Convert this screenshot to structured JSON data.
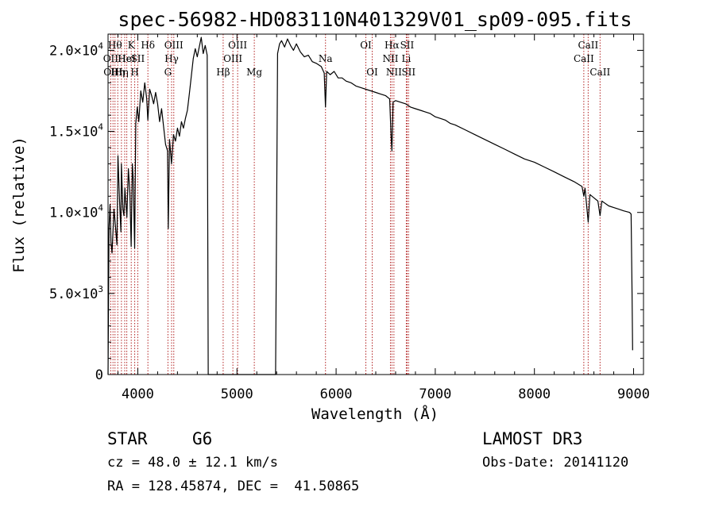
{
  "chart_data": {
    "type": "line",
    "title": "spec-56982-HD083110N401329V01_sp09-095.fits",
    "xlabel": "Wavelength (Å)",
    "ylabel": "Flux (relative)",
    "xlim": [
      3700,
      9100
    ],
    "ylim": [
      0,
      21000
    ],
    "x_ticks": [
      4000,
      5000,
      6000,
      7000,
      8000,
      9000
    ],
    "x_tick_labels": [
      "4000",
      "5000",
      "6000",
      "7000",
      "8000",
      "9000"
    ],
    "y_ticks": [
      0,
      5000,
      10000,
      15000,
      20000
    ],
    "y_tick_labels": [
      {
        "mant": "0",
        "exp": ""
      },
      {
        "mant": "5.0×10",
        "exp": "3"
      },
      {
        "mant": "1.0×10",
        "exp": "4"
      },
      {
        "mant": "1.5×10",
        "exp": "4"
      },
      {
        "mant": "2.0×10",
        "exp": "4"
      }
    ],
    "spectrum": [
      [
        3700,
        0
      ],
      [
        3710,
        9000
      ],
      [
        3720,
        10500
      ],
      [
        3730,
        8200
      ],
      [
        3740,
        7500
      ],
      [
        3760,
        10200
      ],
      [
        3770,
        9500
      ],
      [
        3790,
        8000
      ],
      [
        3800,
        13500
      ],
      [
        3815,
        10800
      ],
      [
        3830,
        8800
      ],
      [
        3835,
        13000
      ],
      [
        3850,
        10200
      ],
      [
        3860,
        9800
      ],
      [
        3870,
        11500
      ],
      [
        3890,
        9700
      ],
      [
        3905,
        12700
      ],
      [
        3920,
        11200
      ],
      [
        3933,
        7900
      ],
      [
        3945,
        13000
      ],
      [
        3955,
        12000
      ],
      [
        3968,
        7800
      ],
      [
        3980,
        15500
      ],
      [
        3995,
        16500
      ],
      [
        4010,
        15600
      ],
      [
        4030,
        17500
      ],
      [
        4050,
        16800
      ],
      [
        4070,
        18000
      ],
      [
        4090,
        17000
      ],
      [
        4101,
        15700
      ],
      [
        4120,
        17600
      ],
      [
        4140,
        17200
      ],
      [
        4160,
        16700
      ],
      [
        4180,
        17400
      ],
      [
        4200,
        16700
      ],
      [
        4220,
        15600
      ],
      [
        4240,
        16400
      ],
      [
        4260,
        15300
      ],
      [
        4280,
        14200
      ],
      [
        4300,
        13800
      ],
      [
        4307,
        9000
      ],
      [
        4320,
        14500
      ],
      [
        4340,
        13000
      ],
      [
        4360,
        14800
      ],
      [
        4380,
        14400
      ],
      [
        4400,
        15200
      ],
      [
        4420,
        14700
      ],
      [
        4440,
        15600
      ],
      [
        4460,
        15200
      ],
      [
        4480,
        15800
      ],
      [
        4500,
        16300
      ],
      [
        4520,
        17300
      ],
      [
        4540,
        18400
      ],
      [
        4560,
        19500
      ],
      [
        4580,
        20100
      ],
      [
        4600,
        19600
      ],
      [
        4620,
        20200
      ],
      [
        4640,
        20800
      ],
      [
        4660,
        19800
      ],
      [
        4680,
        20300
      ],
      [
        4700,
        19700
      ],
      [
        4710,
        0
      ],
      [
        5390,
        0
      ],
      [
        5400,
        10000
      ],
      [
        5410,
        19800
      ],
      [
        5430,
        20400
      ],
      [
        5450,
        20600
      ],
      [
        5480,
        20200
      ],
      [
        5510,
        20700
      ],
      [
        5540,
        20300
      ],
      [
        5570,
        20000
      ],
      [
        5600,
        20400
      ],
      [
        5640,
        19900
      ],
      [
        5680,
        19600
      ],
      [
        5720,
        19700
      ],
      [
        5760,
        19300
      ],
      [
        5800,
        19200
      ],
      [
        5850,
        19000
      ],
      [
        5880,
        18600
      ],
      [
        5893,
        16500
      ],
      [
        5905,
        18700
      ],
      [
        5940,
        18500
      ],
      [
        5980,
        18700
      ],
      [
        6020,
        18300
      ],
      [
        6060,
        18300
      ],
      [
        6100,
        18100
      ],
      [
        6150,
        18000
      ],
      [
        6200,
        17800
      ],
      [
        6250,
        17700
      ],
      [
        6300,
        17600
      ],
      [
        6350,
        17500
      ],
      [
        6400,
        17400
      ],
      [
        6450,
        17300
      ],
      [
        6500,
        17200
      ],
      [
        6540,
        17000
      ],
      [
        6555,
        14700
      ],
      [
        6563,
        13800
      ],
      [
        6575,
        16800
      ],
      [
        6600,
        16900
      ],
      [
        6650,
        16800
      ],
      [
        6700,
        16700
      ],
      [
        6750,
        16500
      ],
      [
        6800,
        16400
      ],
      [
        6850,
        16300
      ],
      [
        6900,
        16200
      ],
      [
        6950,
        16100
      ],
      [
        7000,
        15900
      ],
      [
        7050,
        15800
      ],
      [
        7100,
        15700
      ],
      [
        7150,
        15500
      ],
      [
        7200,
        15400
      ],
      [
        7300,
        15100
      ],
      [
        7400,
        14800
      ],
      [
        7500,
        14500
      ],
      [
        7600,
        14200
      ],
      [
        7700,
        13900
      ],
      [
        7800,
        13600
      ],
      [
        7900,
        13300
      ],
      [
        8000,
        13100
      ],
      [
        8100,
        12800
      ],
      [
        8200,
        12500
      ],
      [
        8300,
        12200
      ],
      [
        8400,
        11900
      ],
      [
        8480,
        11600
      ],
      [
        8498,
        11000
      ],
      [
        8510,
        11500
      ],
      [
        8542,
        9400
      ],
      [
        8560,
        11100
      ],
      [
        8600,
        10900
      ],
      [
        8640,
        10700
      ],
      [
        8662,
        9800
      ],
      [
        8680,
        10700
      ],
      [
        8750,
        10400
      ],
      [
        8800,
        10300
      ],
      [
        8850,
        10200
      ],
      [
        8900,
        10100
      ],
      [
        8960,
        10000
      ],
      [
        8975,
        9900
      ],
      [
        8985,
        5000
      ],
      [
        8990,
        1500
      ]
    ],
    "lines": [
      {
        "x": 3727,
        "label": "OII",
        "row": 2
      },
      {
        "x": 3750,
        "label": "OIII",
        "row": 3
      },
      {
        "x": 3770,
        "label": "Hθ",
        "row": 1
      },
      {
        "x": 3798,
        "label": "Hη",
        "row": 3
      },
      {
        "x": 3835,
        "label": "Hη",
        "row": 3
      },
      {
        "x": 3868,
        "label": "He",
        "row": 2
      },
      {
        "x": 3889,
        "label": "HeI",
        "row": 2
      },
      {
        "x": 3934,
        "label": "K",
        "row": 1
      },
      {
        "x": 3969,
        "label": "H",
        "row": 3
      },
      {
        "x": 4000,
        "label": "SII",
        "row": 2
      },
      {
        "x": 4102,
        "label": "Hδ",
        "row": 1
      },
      {
        "x": 4304,
        "label": "G",
        "row": 3
      },
      {
        "x": 4341,
        "label": "Hγ",
        "row": 2
      },
      {
        "x": 4363,
        "label": "OIII",
        "row": 1
      },
      {
        "x": 4861,
        "label": "Hβ",
        "row": 3
      },
      {
        "x": 4959,
        "label": "OIII",
        "row": 2
      },
      {
        "x": 5007,
        "label": "OIII",
        "row": 1
      },
      {
        "x": 5175,
        "label": "Mg",
        "row": 3
      },
      {
        "x": 5893,
        "label": "Na",
        "row": 2
      },
      {
        "x": 6300,
        "label": "OI",
        "row": 1
      },
      {
        "x": 6364,
        "label": "OI",
        "row": 3
      },
      {
        "x": 6548,
        "label": "NII",
        "row": 2
      },
      {
        "x": 6563,
        "label": "Hα",
        "row": 1
      },
      {
        "x": 6583,
        "label": "NII",
        "row": 3
      },
      {
        "x": 6708,
        "label": "Li",
        "row": 2
      },
      {
        "x": 6716,
        "label": "SII",
        "row": 1
      },
      {
        "x": 6731,
        "label": "SII",
        "row": 3
      },
      {
        "x": 8498,
        "label": "CaII",
        "row": 2
      },
      {
        "x": 8542,
        "label": "CaII",
        "row": 1
      },
      {
        "x": 8662,
        "label": "CaII",
        "row": 3
      }
    ],
    "grid": false,
    "legend": "none"
  },
  "info": {
    "object_class": "STAR",
    "subclass": "G6",
    "redshift": "cz = 48.0 ± 12.1 km/s",
    "coords": "RA = 128.45874, DEC =  41.50865",
    "survey": "LAMOST DR3",
    "obs_date": "Obs-Date: 20141120"
  }
}
